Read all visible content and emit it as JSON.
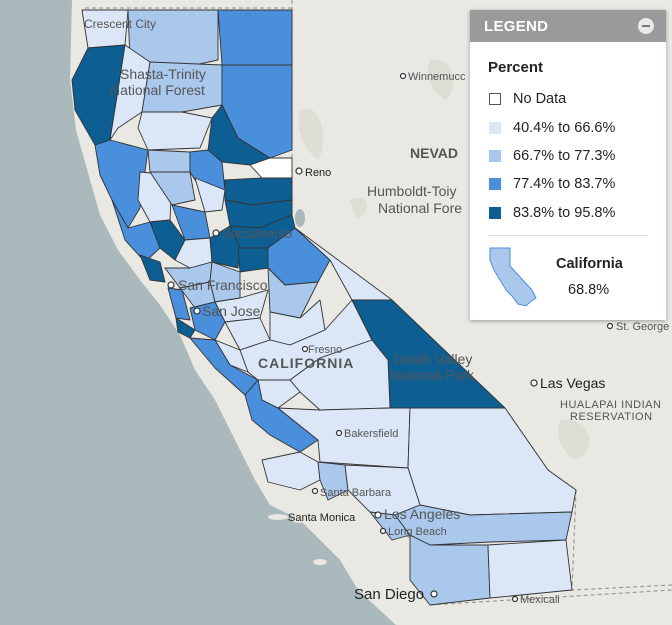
{
  "colors": {
    "no_data": "#ffffff",
    "bin1": "#dbe7f7",
    "bin2": "#a9c8ec",
    "bin3": "#4a8fdb",
    "bin4": "#0d5f93",
    "ocean": "#a9b9bc",
    "land": "#e9e8e3"
  },
  "legend": {
    "title": "LEGEND",
    "subtitle": "Percent",
    "items": [
      {
        "label": "No Data",
        "color": "#ffffff"
      },
      {
        "label": "40.4% to 66.6%",
        "color": "#dbe7f7"
      },
      {
        "label": "66.7% to 77.3%",
        "color": "#a9c8ec"
      },
      {
        "label": "77.4% to 83.7%",
        "color": "#4a8fdb"
      },
      {
        "label": "83.8% to 95.8%",
        "color": "#0d5f93"
      }
    ],
    "state_name": "California",
    "state_value": "68.8%"
  },
  "map_labels": {
    "crescent_city": "Crescent City",
    "shasta1": "Shasta-Trinity",
    "shasta2": "National Forest",
    "winnemucca": "Winnemucc",
    "nevada": "NEVAD",
    "reno": "Reno",
    "humboldt1": "Humboldt-Toiy",
    "humboldt2": "National Fore",
    "sacramento": "Sacramento",
    "san_francisco": "San Francisco",
    "san_jose": "San Jose",
    "fresno": "Fresno",
    "california": "CALIFORNIA",
    "death_valley1": "Death Valley",
    "death_valley2": "National Park",
    "st_george": "St. George",
    "las_vegas": "Las Vegas",
    "hualapai1": "HUALAPAI INDIAN",
    "hualapai2": "RESERVATION",
    "bakersfield": "Bakersfield",
    "santa_barbara": "Santa Barbara",
    "santa_monica": "Santa Monica",
    "los_angeles": "Los Angeles",
    "long_beach": "Long Beach",
    "san_diego": "San Diego",
    "mexicali": "Mexicali"
  }
}
